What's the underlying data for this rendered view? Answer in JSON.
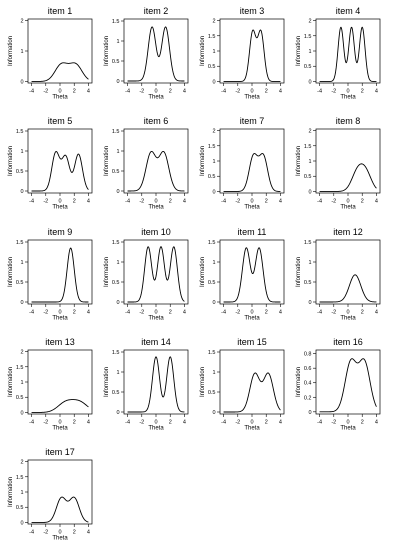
{
  "chart_data": [
    {
      "type": "line",
      "title": "item 1",
      "xlabel": "Theta",
      "ylabel": "Information",
      "xlim": [
        -4.5,
        4.5
      ],
      "ylim": [
        -0.05,
        2.05
      ],
      "x_ticks": [
        -4,
        -2,
        0,
        2,
        4
      ],
      "y_ticks": [
        0,
        1,
        2
      ],
      "components": [
        {
          "mu": 0.2,
          "sd": 0.9,
          "amp": 0.55
        },
        {
          "mu": 2.2,
          "sd": 0.9,
          "amp": 0.55
        }
      ]
    },
    {
      "type": "line",
      "title": "item 2",
      "xlabel": "Theta",
      "ylabel": "Information",
      "xlim": [
        -4.5,
        4.5
      ],
      "ylim": [
        -0.05,
        1.55
      ],
      "x_ticks": [
        -4,
        -2,
        0,
        2,
        4
      ],
      "y_ticks": [
        0,
        0.5,
        1,
        1.5
      ],
      "components": [
        {
          "mu": -0.55,
          "sd": 0.55,
          "amp": 1.35
        },
        {
          "mu": 1.35,
          "sd": 0.55,
          "amp": 1.35
        }
      ]
    },
    {
      "type": "line",
      "title": "item 3",
      "xlabel": "Theta",
      "ylabel": "Information",
      "xlim": [
        -4.5,
        4.5
      ],
      "ylim": [
        -0.05,
        2.05
      ],
      "x_ticks": [
        -4,
        -2,
        0,
        2,
        4
      ],
      "y_ticks": [
        0,
        0.5,
        1,
        1.5,
        2
      ],
      "components": [
        {
          "mu": 0.1,
          "sd": 0.45,
          "amp": 1.62
        },
        {
          "mu": 1.25,
          "sd": 0.45,
          "amp": 1.62
        }
      ]
    },
    {
      "type": "line",
      "title": "item 4",
      "xlabel": "Theta",
      "ylabel": "Information",
      "xlim": [
        -4.5,
        4.5
      ],
      "ylim": [
        -0.05,
        2.05
      ],
      "x_ticks": [
        -4,
        -2,
        0,
        2,
        4
      ],
      "y_ticks": [
        0,
        0.5,
        1,
        1.5,
        2
      ],
      "components": [
        {
          "mu": -1.0,
          "sd": 0.4,
          "amp": 1.78
        },
        {
          "mu": 0.5,
          "sd": 0.4,
          "amp": 1.78
        },
        {
          "mu": 2.0,
          "sd": 0.4,
          "amp": 1.78
        }
      ]
    },
    {
      "type": "line",
      "title": "item 5",
      "xlabel": "Theta",
      "ylabel": "Information",
      "xlim": [
        -4.5,
        4.5
      ],
      "ylim": [
        -0.05,
        1.55
      ],
      "x_ticks": [
        -4,
        -2,
        0,
        2,
        4
      ],
      "y_ticks": [
        0,
        0.5,
        1,
        1.5
      ],
      "components": [
        {
          "mu": -0.6,
          "sd": 0.55,
          "amp": 0.95
        },
        {
          "mu": 0.8,
          "sd": 0.55,
          "amp": 0.85
        },
        {
          "mu": 2.6,
          "sd": 0.55,
          "amp": 0.92
        }
      ]
    },
    {
      "type": "line",
      "title": "item 6",
      "xlabel": "Theta",
      "ylabel": "Information",
      "xlim": [
        -4.5,
        4.5
      ],
      "ylim": [
        -0.05,
        1.55
      ],
      "x_ticks": [
        -4,
        -2,
        0,
        2,
        4
      ],
      "y_ticks": [
        0,
        0.5,
        1,
        1.5
      ],
      "components": [
        {
          "mu": -0.7,
          "sd": 0.7,
          "amp": 0.95
        },
        {
          "mu": 1.1,
          "sd": 0.7,
          "amp": 0.95
        }
      ]
    },
    {
      "type": "line",
      "title": "item 7",
      "xlabel": "Theta",
      "ylabel": "Information",
      "xlim": [
        -4.5,
        4.5
      ],
      "ylim": [
        -0.05,
        2.05
      ],
      "x_ticks": [
        -4,
        -2,
        0,
        2,
        4
      ],
      "y_ticks": [
        0,
        0.5,
        1,
        1.5,
        2
      ],
      "components": [
        {
          "mu": 0.2,
          "sd": 0.6,
          "amp": 1.15
        },
        {
          "mu": 1.6,
          "sd": 0.6,
          "amp": 1.15
        }
      ]
    },
    {
      "type": "line",
      "title": "item 8",
      "xlabel": "Theta",
      "ylabel": "Information",
      "xlim": [
        -4.5,
        4.5
      ],
      "ylim": [
        -0.05,
        2.05
      ],
      "x_ticks": [
        -4,
        -2,
        0,
        2,
        4
      ],
      "y_ticks": [
        0,
        0.5,
        1,
        1.5,
        2
      ],
      "components": [
        {
          "mu": 1.3,
          "sd": 0.8,
          "amp": 0.6
        },
        {
          "mu": 2.5,
          "sd": 0.8,
          "amp": 0.6
        }
      ]
    },
    {
      "type": "line",
      "title": "item 9",
      "xlabel": "Theta",
      "ylabel": "Information",
      "xlim": [
        -4.5,
        4.5
      ],
      "ylim": [
        -0.05,
        1.55
      ],
      "x_ticks": [
        -4,
        -2,
        0,
        2,
        4
      ],
      "y_ticks": [
        0,
        0.5,
        1,
        1.5
      ],
      "components": [
        {
          "mu": 1.5,
          "sd": 0.5,
          "amp": 1.35
        }
      ]
    },
    {
      "type": "line",
      "title": "item 10",
      "xlabel": "Theta",
      "ylabel": "Information",
      "xlim": [
        -4.5,
        4.5
      ],
      "ylim": [
        -0.05,
        1.55
      ],
      "x_ticks": [
        -4,
        -2,
        0,
        2,
        4
      ],
      "y_ticks": [
        0,
        0.5,
        1,
        1.5
      ],
      "components": [
        {
          "mu": -1.1,
          "sd": 0.5,
          "amp": 1.38
        },
        {
          "mu": 0.7,
          "sd": 0.5,
          "amp": 1.38
        },
        {
          "mu": 2.5,
          "sd": 0.5,
          "amp": 1.38
        }
      ]
    },
    {
      "type": "line",
      "title": "item 11",
      "xlabel": "Theta",
      "ylabel": "Information",
      "xlim": [
        -4.5,
        4.5
      ],
      "ylim": [
        -0.05,
        1.55
      ],
      "x_ticks": [
        -4,
        -2,
        0,
        2,
        4
      ],
      "y_ticks": [
        0,
        0.5,
        1,
        1.5
      ],
      "components": [
        {
          "mu": -0.8,
          "sd": 0.55,
          "amp": 1.35
        },
        {
          "mu": 1.0,
          "sd": 0.55,
          "amp": 1.35
        }
      ]
    },
    {
      "type": "line",
      "title": "item 12",
      "xlabel": "Theta",
      "ylabel": "Information",
      "xlim": [
        -4.5,
        4.5
      ],
      "ylim": [
        -0.05,
        1.55
      ],
      "x_ticks": [
        -4,
        -2,
        0,
        2,
        4
      ],
      "y_ticks": [
        0,
        0.5,
        1,
        1.5
      ],
      "components": [
        {
          "mu": 1.0,
          "sd": 0.8,
          "amp": 0.68
        }
      ]
    },
    {
      "type": "line",
      "title": "item 13",
      "xlabel": "Theta",
      "ylabel": "Information",
      "xlim": [
        -4.5,
        4.5
      ],
      "ylim": [
        -0.05,
        2.05
      ],
      "x_ticks": [
        -4,
        -2,
        0,
        2,
        4
      ],
      "y_ticks": [
        0,
        0.5,
        1,
        1.5,
        2
      ],
      "components": [
        {
          "mu": 0.8,
          "sd": 1.1,
          "amp": 0.32
        },
        {
          "mu": 2.8,
          "sd": 1.1,
          "amp": 0.32
        }
      ]
    },
    {
      "type": "line",
      "title": "item 14",
      "xlabel": "Theta",
      "ylabel": "Information",
      "xlim": [
        -4.5,
        4.5
      ],
      "ylim": [
        -0.05,
        1.55
      ],
      "x_ticks": [
        -4,
        -2,
        0,
        2,
        4
      ],
      "y_ticks": [
        0,
        0.5,
        1,
        1.5
      ],
      "components": [
        {
          "mu": 0.0,
          "sd": 0.5,
          "amp": 1.38
        },
        {
          "mu": 2.0,
          "sd": 0.5,
          "amp": 1.38
        }
      ]
    },
    {
      "type": "line",
      "title": "item 15",
      "xlabel": "Theta",
      "ylabel": "Information",
      "xlim": [
        -4.5,
        4.5
      ],
      "ylim": [
        -0.05,
        1.55
      ],
      "x_ticks": [
        -4,
        -2,
        0,
        2,
        4
      ],
      "y_ticks": [
        0,
        0.5,
        1,
        1.5
      ],
      "components": [
        {
          "mu": 0.4,
          "sd": 0.7,
          "amp": 0.95
        },
        {
          "mu": 2.3,
          "sd": 0.7,
          "amp": 0.95
        }
      ]
    },
    {
      "type": "line",
      "title": "item 16",
      "xlabel": "Theta",
      "ylabel": "Information",
      "xlim": [
        -4.5,
        4.5
      ],
      "ylim": [
        -0.03,
        0.85
      ],
      "x_ticks": [
        -4,
        -2,
        0,
        2,
        4
      ],
      "y_ticks": [
        0,
        0.2,
        0.4,
        0.6,
        0.8
      ],
      "components": [
        {
          "mu": 0.4,
          "sd": 0.8,
          "amp": 0.68
        },
        {
          "mu": 2.3,
          "sd": 0.8,
          "amp": 0.68
        }
      ]
    },
    {
      "type": "line",
      "title": "item 17",
      "xlabel": "Theta",
      "ylabel": "Information",
      "xlim": [
        -4.5,
        4.5
      ],
      "ylim": [
        -0.05,
        2.05
      ],
      "x_ticks": [
        -4,
        -2,
        0,
        2,
        4
      ],
      "y_ticks": [
        0,
        0.5,
        1,
        1.5,
        2
      ],
      "components": [
        {
          "mu": 0.2,
          "sd": 0.7,
          "amp": 0.8
        },
        {
          "mu": 2.0,
          "sd": 0.7,
          "amp": 0.8
        }
      ]
    }
  ]
}
